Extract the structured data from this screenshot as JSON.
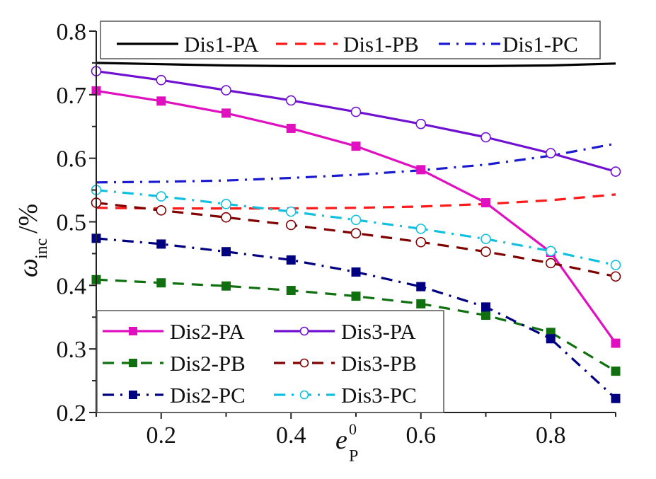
{
  "chart_data": {
    "type": "line",
    "title": "",
    "xlabel": {
      "base": "e",
      "subscript": "P",
      "superscript": "0"
    },
    "ylabel": {
      "base": "ω",
      "subscript": "inc",
      "suffix": "/%"
    },
    "xlim": [
      0.1,
      0.9
    ],
    "ylim": [
      0.2,
      0.8
    ],
    "x_ticks": [
      0.2,
      0.4,
      0.6,
      0.8
    ],
    "x_tick_labels": [
      "0.2",
      "0.4",
      "0.6",
      "0.8"
    ],
    "x_minor_ticks": [
      0.1,
      0.3,
      0.5,
      0.7,
      0.9
    ],
    "y_ticks": [
      0.2,
      0.3,
      0.4,
      0.5,
      0.6,
      0.7,
      0.8
    ],
    "y_tick_labels": [
      "0.2",
      "0.3",
      "0.4",
      "0.5",
      "0.6",
      "0.7",
      "0.8"
    ],
    "y_minor_ticks": [
      0.25,
      0.35,
      0.45,
      0.55,
      0.65,
      0.75
    ],
    "grid": false,
    "x": [
      0.1,
      0.2,
      0.3,
      0.4,
      0.5,
      0.6,
      0.7,
      0.8,
      0.9
    ],
    "series": [
      {
        "name": "Dis1-PA",
        "color": "#000000",
        "dash": "solid",
        "marker": "none",
        "values": [
          0.75,
          0.748,
          0.746,
          0.745,
          0.745,
          0.745,
          0.745,
          0.746,
          0.749
        ]
      },
      {
        "name": "Dis1-PB",
        "color": "#ff1a1a",
        "dash": "dash",
        "marker": "none",
        "values": [
          0.522,
          0.521,
          0.521,
          0.521,
          0.522,
          0.524,
          0.528,
          0.534,
          0.543
        ]
      },
      {
        "name": "Dis1-PC",
        "color": "#1a1ad0",
        "dash": "dashdot",
        "marker": "none",
        "values": [
          0.562,
          0.563,
          0.565,
          0.569,
          0.574,
          0.581,
          0.59,
          0.604,
          0.623
        ]
      },
      {
        "name": "Dis2-PA",
        "color": "#e010c0",
        "dash": "solid",
        "marker": "square-filled",
        "values": [
          0.706,
          0.69,
          0.671,
          0.647,
          0.619,
          0.582,
          0.53,
          0.452,
          0.309
        ]
      },
      {
        "name": "Dis2-PB",
        "color": "#107010",
        "dash": "dash",
        "marker": "square-filled",
        "values": [
          0.409,
          0.404,
          0.399,
          0.392,
          0.383,
          0.371,
          0.353,
          0.326,
          0.265
        ]
      },
      {
        "name": "Dis2-PC",
        "color": "#000080",
        "dash": "dashdot",
        "marker": "square-filled",
        "values": [
          0.474,
          0.465,
          0.453,
          0.44,
          0.421,
          0.398,
          0.366,
          0.316,
          0.222
        ]
      },
      {
        "name": "Dis3-PA",
        "color": "#7010d0",
        "dash": "solid",
        "marker": "circle-open",
        "values": [
          0.737,
          0.723,
          0.707,
          0.691,
          0.673,
          0.654,
          0.633,
          0.608,
          0.579
        ]
      },
      {
        "name": "Dis3-PB",
        "color": "#800000",
        "dash": "dash",
        "marker": "circle-open",
        "values": [
          0.53,
          0.518,
          0.507,
          0.495,
          0.482,
          0.468,
          0.453,
          0.435,
          0.414
        ]
      },
      {
        "name": "Dis3-PC",
        "color": "#10c0e0",
        "dash": "dashdot",
        "marker": "circle-open",
        "values": [
          0.55,
          0.54,
          0.528,
          0.516,
          0.503,
          0.489,
          0.473,
          0.454,
          0.432
        ]
      }
    ],
    "legends": [
      {
        "placement": "top",
        "columns": 3,
        "entries": [
          "Dis1-PA",
          "Dis1-PB",
          "Dis1-PC"
        ]
      },
      {
        "placement": "bottom-left",
        "columns": 2,
        "entries": [
          "Dis2-PA",
          "Dis3-PA",
          "Dis2-PB",
          "Dis3-PB",
          "Dis2-PC",
          "Dis3-PC"
        ]
      }
    ]
  }
}
